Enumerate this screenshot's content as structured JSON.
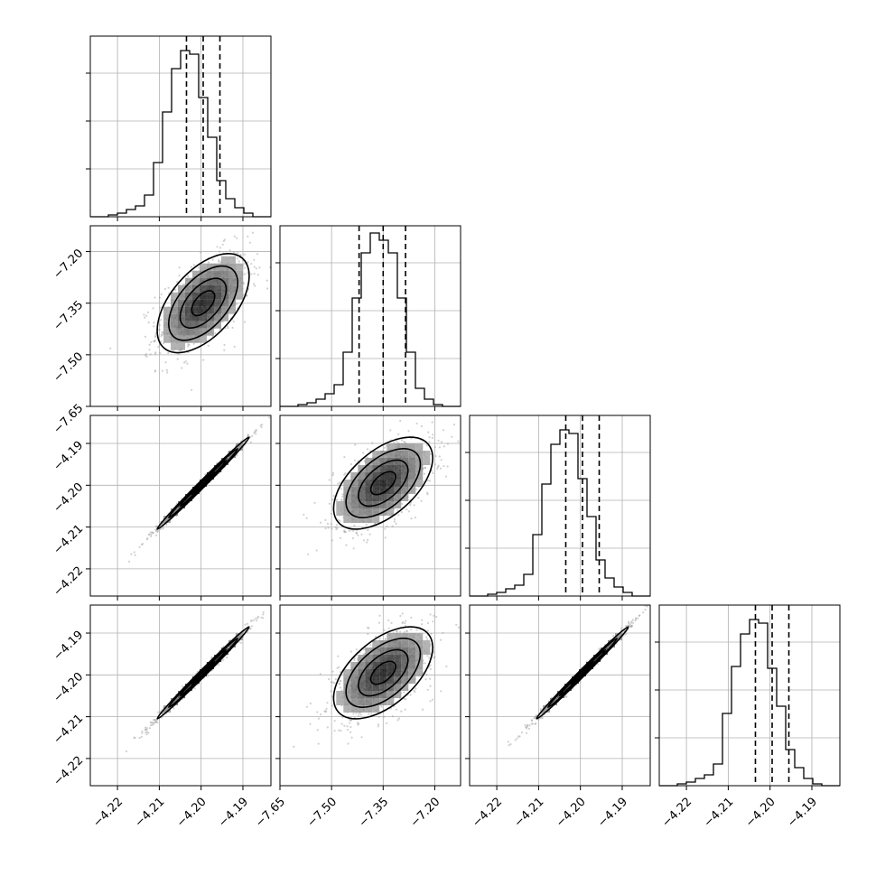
{
  "chart_data": {
    "type": "corner",
    "parameters": 4,
    "axes": [
      {
        "ticks": [
          "-4.22",
          "-4.21",
          "-4.20",
          "-4.19"
        ],
        "tick_values": [
          -4.22,
          -4.21,
          -4.2,
          -4.19
        ],
        "range": [
          -4.2265,
          -4.1833
        ]
      },
      {
        "ticks": [
          "-7.65",
          "-7.50",
          "-7.35",
          "-7.20"
        ],
        "tick_values": [
          -7.65,
          -7.5,
          -7.35,
          -7.2
        ],
        "range": [
          -7.65,
          -7.125
        ]
      },
      {
        "ticks": [
          "-4.22",
          "-4.21",
          "-4.20",
          "-4.19"
        ],
        "tick_values": [
          -4.22,
          -4.21,
          -4.2,
          -4.19
        ],
        "range": [
          -4.2265,
          -4.1833
        ]
      },
      {
        "ticks": [
          "-4.22",
          "-4.21",
          "-4.20",
          "-4.19"
        ],
        "tick_values": [
          -4.22,
          -4.21,
          -4.2,
          -4.19
        ],
        "range": [
          -4.2265,
          -4.1833
        ]
      }
    ],
    "histograms": [
      {
        "quantiles": [
          -4.2035,
          -4.1995,
          -4.1955
        ],
        "heights": [
          0.01,
          0.02,
          0.04,
          0.06,
          0.12,
          0.3,
          0.58,
          0.82,
          0.92,
          0.9,
          0.66,
          0.44,
          0.2,
          0.1,
          0.05,
          0.02
        ]
      },
      {
        "quantiles": [
          -7.42,
          -7.35,
          -7.285
        ],
        "heights": [
          0.01,
          0.02,
          0.04,
          0.07,
          0.12,
          0.3,
          0.6,
          0.85,
          0.96,
          0.92,
          0.85,
          0.6,
          0.3,
          0.1,
          0.04,
          0.01
        ]
      },
      {
        "quantiles": [
          -4.2035,
          -4.1995,
          -4.1955
        ],
        "heights": [
          0.01,
          0.02,
          0.04,
          0.06,
          0.12,
          0.34,
          0.62,
          0.84,
          0.92,
          0.9,
          0.65,
          0.44,
          0.2,
          0.1,
          0.05,
          0.02
        ]
      },
      {
        "quantiles": [
          -4.2035,
          -4.1995,
          -4.1955
        ],
        "heights": [
          0.01,
          0.02,
          0.04,
          0.06,
          0.12,
          0.4,
          0.66,
          0.84,
          0.92,
          0.9,
          0.65,
          0.44,
          0.2,
          0.1,
          0.04,
          0.01
        ]
      }
    ],
    "scatter_panels": [
      {
        "row": 1,
        "col": 0,
        "center": [
          -4.1995,
          -7.35
        ],
        "sigma": [
          0.0055,
          0.072
        ],
        "rho": 0.55
      },
      {
        "row": 2,
        "col": 0,
        "center": [
          -4.1995,
          -4.1995
        ],
        "sigma": [
          0.0055,
          0.0055
        ],
        "rho": 0.995
      },
      {
        "row": 2,
        "col": 1,
        "center": [
          -7.35,
          -4.1995
        ],
        "sigma": [
          0.072,
          0.0055
        ],
        "rho": 0.55
      },
      {
        "row": 3,
        "col": 0,
        "center": [
          -4.1995,
          -4.1995
        ],
        "sigma": [
          0.0055,
          0.0055
        ],
        "rho": 0.995
      },
      {
        "row": 3,
        "col": 1,
        "center": [
          -7.35,
          -4.1995
        ],
        "sigma": [
          0.072,
          0.0055
        ],
        "rho": 0.55
      },
      {
        "row": 3,
        "col": 2,
        "center": [
          -4.1995,
          -4.1995
        ],
        "sigma": [
          0.0055,
          0.0055
        ],
        "rho": 0.995
      }
    ],
    "contour_levels_sigma": [
      0.5,
      1.0,
      1.5,
      2.0
    ],
    "grid": true,
    "colors": {
      "points": "#9a9a9a",
      "lines": "#000000",
      "grid": "#b0b0b0"
    }
  }
}
